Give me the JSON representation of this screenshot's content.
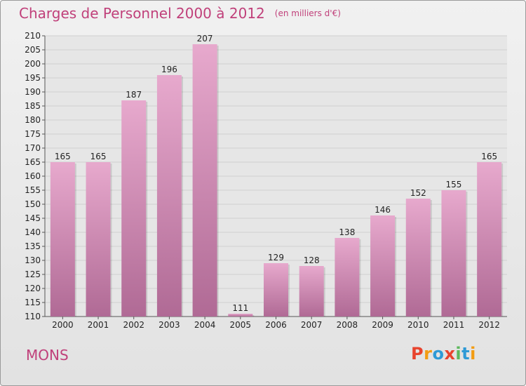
{
  "header": {
    "title": "Charges de Personnel 2000 à 2012",
    "subtitle": "(en milliers d'€)"
  },
  "footer": {
    "city": "MONS",
    "logo_text": "Proxiti",
    "logo_colors": [
      "#e8432d",
      "#f39c12",
      "#2e9ad6",
      "#e8432d",
      "#5cb85c",
      "#2e9ad6",
      "#f39c12"
    ]
  },
  "colors": {
    "bar_top": "#e7a9cd",
    "bar_bottom": "#b06a95",
    "title": "#c0407a",
    "grid": "#d0d0d0"
  },
  "chart_data": {
    "type": "bar",
    "title": "Charges de Personnel 2000 à 2012",
    "subtitle": "(en milliers d'€)",
    "categories": [
      "2000",
      "2001",
      "2002",
      "2003",
      "2004",
      "2005",
      "2006",
      "2007",
      "2008",
      "2009",
      "2010",
      "2011",
      "2012"
    ],
    "values": [
      165,
      165,
      187,
      196,
      207,
      111,
      129,
      128,
      138,
      146,
      152,
      155,
      165
    ],
    "ylim": [
      110,
      210
    ],
    "yticks": [
      110,
      115,
      120,
      125,
      130,
      135,
      140,
      145,
      150,
      155,
      160,
      165,
      170,
      175,
      180,
      185,
      190,
      195,
      200,
      205,
      210
    ],
    "xlabel": "",
    "ylabel": "",
    "grid": true,
    "data_labels": true
  }
}
